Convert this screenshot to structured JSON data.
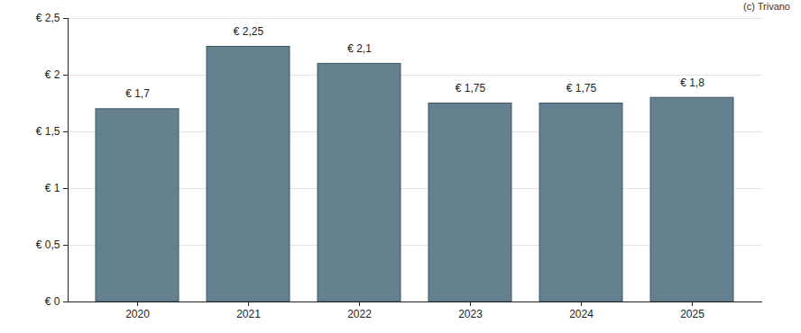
{
  "chart_data": {
    "type": "bar",
    "caption": "(c) Trivano",
    "categories": [
      "2020",
      "2021",
      "2022",
      "2023",
      "2024",
      "2025"
    ],
    "values": [
      1.7,
      2.25,
      2.1,
      1.75,
      1.75,
      1.8
    ],
    "value_labels": [
      "€ 1,7",
      "€ 2,25",
      "€ 2,1",
      "€ 1,75",
      "€ 1,75",
      "€ 1,8"
    ],
    "data_labels": true,
    "color": "#65808f",
    "ylim": [
      0,
      2.5
    ],
    "yticks": [
      {
        "value": 0,
        "label": "€ 0"
      },
      {
        "value": 0.5,
        "label": "€ 0,5"
      },
      {
        "value": 1,
        "label": "€ 1"
      },
      {
        "value": 1.5,
        "label": "€ 1,5"
      },
      {
        "value": 2,
        "label": "€ 2"
      },
      {
        "value": 2.5,
        "label": "€ 2,5"
      }
    ],
    "grid": true
  }
}
